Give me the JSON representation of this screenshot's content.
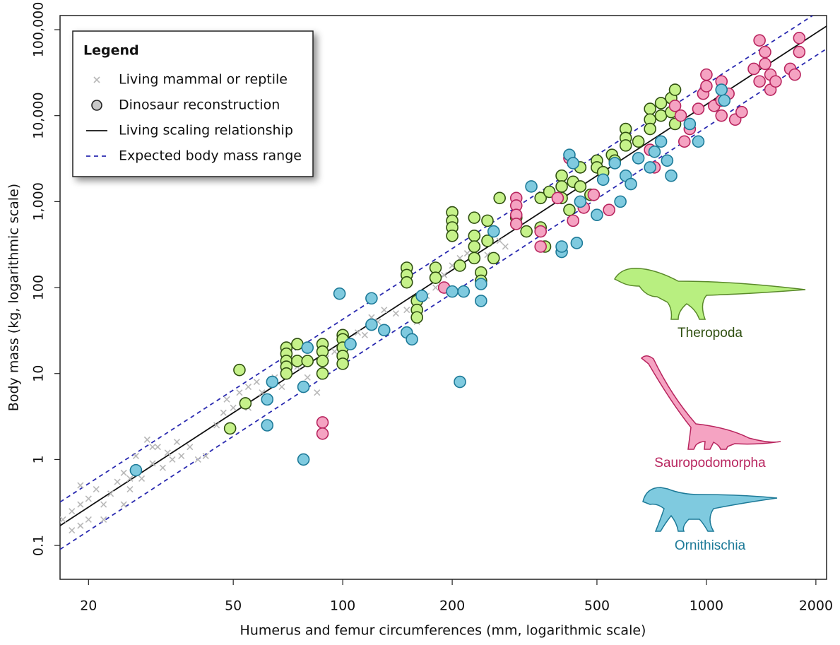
{
  "chart_data": {
    "type": "scatter",
    "xlabel": "Humerus and femur circumferences (mm, logarithmic scale)",
    "ylabel": "Body mass (kg, logarithmic scale)",
    "xscale": "log",
    "yscale": "log",
    "xlim": [
      16.7,
      2140
    ],
    "ylim": [
      0.0404,
      146000
    ],
    "xticks": [
      20,
      50,
      100,
      200,
      500,
      1000,
      2000
    ],
    "yticks": [
      0.1,
      1,
      10,
      100,
      {
        "value": 1000,
        "label": "1,000"
      },
      {
        "value": 10000,
        "label": "10,000"
      },
      {
        "value": 100000,
        "label": "100,000"
      }
    ],
    "legend": {
      "title": "Legend",
      "position": "upper left",
      "dinosaur_entry": "Dinosaur reconstruction",
      "dinosaur_color": "#c8c8c8"
    },
    "series": [
      {
        "name": "Living mammal or reptile",
        "marker": "x",
        "color": "#b8b8b8",
        "x": [
          17,
          18,
          18,
          19,
          19,
          20,
          20,
          21,
          22,
          23,
          24,
          25,
          25,
          26,
          27,
          28,
          29,
          30,
          31,
          32,
          33,
          35,
          36,
          38,
          40,
          45,
          47,
          48,
          50,
          52,
          55,
          58,
          60,
          65,
          68,
          75,
          80,
          85,
          90,
          95,
          100,
          110,
          115,
          120,
          125,
          130,
          140,
          150,
          160,
          170,
          180,
          190,
          200,
          210,
          220,
          250,
          270,
          280,
          26,
          30,
          34,
          42,
          55,
          22,
          19
        ],
        "y": [
          0.2,
          0.25,
          0.15,
          0.5,
          0.3,
          0.2,
          0.35,
          0.45,
          0.3,
          0.4,
          0.55,
          0.3,
          0.7,
          0.45,
          1.1,
          0.6,
          1.7,
          0.9,
          1.4,
          0.8,
          1.2,
          1.6,
          1.1,
          1.4,
          1,
          2.5,
          3.5,
          5,
          4,
          6,
          7,
          8,
          6,
          9,
          7,
          12,
          9,
          6,
          15,
          18,
          22,
          30,
          28,
          45,
          40,
          55,
          50,
          55,
          40,
          80,
          100,
          140,
          180,
          220,
          250,
          240,
          350,
          300,
          0.6,
          1.4,
          1,
          1.1,
          4,
          0.2,
          0.17
        ]
      },
      {
        "name": "Theropoda",
        "marker": "o",
        "color": "#c6f28a",
        "edgecolor": "#2f4f10",
        "x": [
          52,
          54,
          49,
          70,
          70,
          70,
          70,
          70,
          75,
          75,
          80,
          88,
          88,
          88,
          88,
          100,
          100,
          100,
          100,
          100,
          150,
          150,
          150,
          160,
          160,
          160,
          180,
          180,
          200,
          200,
          200,
          200,
          210,
          230,
          230,
          230,
          230,
          240,
          240,
          250,
          250,
          260,
          270,
          300,
          320,
          350,
          350,
          360,
          370,
          400,
          400,
          400,
          420,
          430,
          450,
          450,
          480,
          500,
          500,
          520,
          550,
          560,
          600,
          600,
          600,
          650,
          700,
          700,
          700,
          750,
          750,
          800,
          800,
          820,
          820
        ],
        "y": [
          11,
          4.5,
          2.3,
          20,
          17,
          14,
          12,
          10,
          22,
          14,
          14,
          22,
          18,
          14,
          10,
          28,
          25,
          20,
          16,
          13,
          170,
          140,
          115,
          70,
          55,
          45,
          170,
          130,
          750,
          600,
          500,
          400,
          180,
          650,
          400,
          300,
          220,
          150,
          120,
          600,
          350,
          220,
          1100,
          650,
          450,
          1100,
          500,
          300,
          1300,
          2000,
          1500,
          1100,
          800,
          1700,
          2500,
          1500,
          1200,
          3000,
          2500,
          2200,
          3500,
          3000,
          7000,
          5500,
          4500,
          5000,
          12000,
          9000,
          7000,
          14000,
          10000,
          16000,
          11000,
          20000,
          8000
        ]
      },
      {
        "name": "Sauropodomorpha",
        "marker": "o",
        "color": "#f5a3c2",
        "edgecolor": "#b8245e",
        "x": [
          88,
          88,
          190,
          300,
          300,
          300,
          300,
          350,
          350,
          390,
          420,
          430,
          460,
          490,
          540,
          700,
          720,
          820,
          850,
          870,
          900,
          950,
          980,
          1000,
          1000,
          1050,
          1100,
          1100,
          1100,
          1150,
          1200,
          1250,
          1350,
          1400,
          1400,
          1450,
          1450,
          1500,
          1500,
          1550,
          1700,
          1750,
          1800,
          1800
        ],
        "y": [
          2.7,
          2,
          100,
          1100,
          900,
          700,
          550,
          300,
          450,
          1100,
          3200,
          600,
          850,
          1200,
          800,
          4000,
          2500,
          13000,
          10000,
          5000,
          7000,
          12000,
          18000,
          30000,
          22000,
          13000,
          25000,
          15000,
          10000,
          18000,
          9000,
          11000,
          35000,
          25000,
          75000,
          55000,
          40000,
          30000,
          20000,
          25000,
          35000,
          30000,
          80000,
          55000
        ]
      },
      {
        "name": "Ornithischia",
        "marker": "o",
        "color": "#7fcadf",
        "edgecolor": "#1d7a98",
        "x": [
          27,
          62,
          62,
          64,
          78,
          78,
          80,
          98,
          105,
          120,
          120,
          130,
          150,
          155,
          165,
          200,
          210,
          215,
          240,
          240,
          260,
          330,
          400,
          400,
          420,
          430,
          440,
          450,
          500,
          520,
          560,
          580,
          600,
          620,
          650,
          700,
          720,
          750,
          780,
          800,
          900,
          950,
          1100,
          1120
        ],
        "y": [
          0.75,
          2.5,
          5,
          8,
          1,
          7,
          20,
          85,
          22,
          75,
          37,
          32,
          30,
          25,
          80,
          90,
          8,
          90,
          70,
          110,
          450,
          1500,
          260,
          300,
          3500,
          2800,
          330,
          1000,
          700,
          1800,
          2800,
          1000,
          2000,
          1600,
          3200,
          2500,
          3800,
          5000,
          3000,
          2000,
          8000,
          5000,
          20000,
          15000
        ]
      }
    ],
    "lines": [
      {
        "name": "Living scaling relationship",
        "style": "solid",
        "color": "#111111",
        "x": [
          16.7,
          2140
        ],
        "y": [
          0.17,
          110000
        ]
      },
      {
        "name": "Expected body mass range",
        "style": "dashed",
        "color": "#2a2ab0",
        "x": [
          16.7,
          1960
        ],
        "y": [
          0.32,
          146000
        ]
      },
      {
        "style": "dashed",
        "color": "#2a2ab0",
        "x": [
          16.7,
          2140
        ],
        "y": [
          0.09,
          60000
        ]
      }
    ]
  }
}
